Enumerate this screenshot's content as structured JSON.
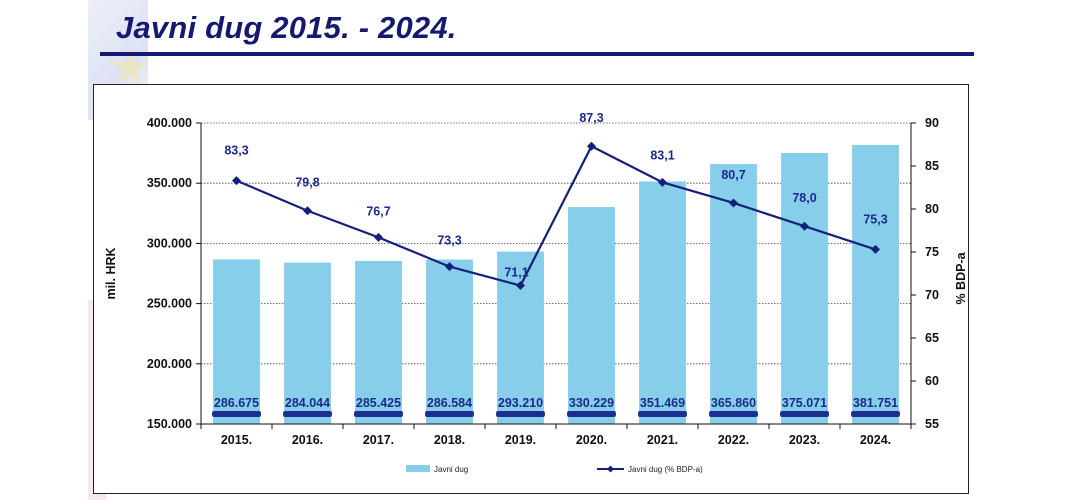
{
  "title": "Javni dug 2015. - 2024.",
  "chart_data": {
    "type": "bar",
    "categories": [
      "2015.",
      "2016.",
      "2017.",
      "2018.",
      "2019.",
      "2020.",
      "2021.",
      "2022.",
      "2023.",
      "2024."
    ],
    "series": [
      {
        "name": "Javni dug",
        "type": "bar",
        "axis": "left",
        "values": [
          286675,
          284044,
          285425,
          286584,
          293210,
          330229,
          351469,
          365860,
          375071,
          381751
        ],
        "labels": [
          "286.675",
          "284.044",
          "285.425",
          "286.584",
          "293.210",
          "330.229",
          "351.469",
          "365.860",
          "375.071",
          "381.751"
        ],
        "color": "#87ceeb"
      },
      {
        "name": "Javni dug (% BDP-a)",
        "type": "line",
        "axis": "right",
        "values": [
          83.3,
          79.8,
          76.7,
          73.3,
          71.1,
          87.3,
          83.1,
          80.7,
          78.0,
          75.3
        ],
        "labels": [
          "83,3",
          "79,8",
          "76,7",
          "73,3",
          "71,1",
          "87,3",
          "83,1",
          "80,7",
          "78,0",
          "75,3"
        ],
        "color": "#15207a"
      }
    ],
    "ylabel": "mil. HRK",
    "ylabel_right": "% BDP-a",
    "ylim": [
      150000,
      400000
    ],
    "y_ticks": [
      "150.000",
      "200.000",
      "250.000",
      "300.000",
      "350.000",
      "400.000"
    ],
    "ylim_right": [
      55,
      90
    ],
    "y_ticks_right": [
      "55",
      "60",
      "65",
      "70",
      "75",
      "80",
      "85",
      "90"
    ],
    "grid": true,
    "legend_position": "bottom"
  }
}
